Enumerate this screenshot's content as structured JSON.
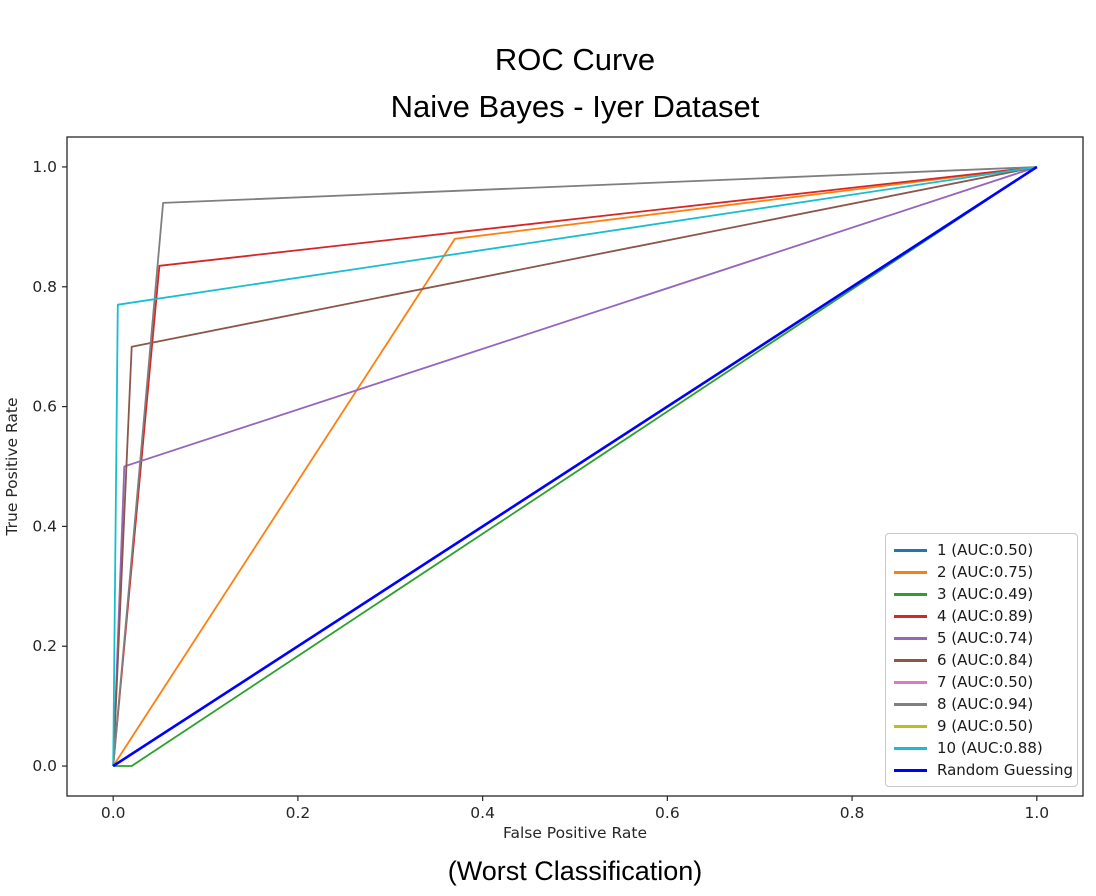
{
  "title": {
    "line1": "ROC Curve",
    "line2": "Naive Bayes - Iyer Dataset"
  },
  "caption": "(Worst Classification)",
  "chart_data": {
    "type": "line",
    "title": "ROC Curve — Naive Bayes - Iyer Dataset",
    "xlabel": "False Positive Rate",
    "ylabel": "True Positive Rate",
    "xlim": [
      -0.05,
      1.05
    ],
    "ylim": [
      -0.05,
      1.05
    ],
    "x_ticks": [
      "0.0",
      "0.2",
      "0.4",
      "0.6",
      "0.8",
      "1.0"
    ],
    "y_ticks": [
      "0.0",
      "0.2",
      "0.4",
      "0.6",
      "0.8",
      "1.0"
    ],
    "grid": false,
    "legend_position": "lower right",
    "axis_color": "#262626",
    "series": [
      {
        "name": "1 (AUC:0.50)",
        "color": "#1f77b4",
        "width": 1.8,
        "points": [
          [
            0,
            0
          ],
          [
            1,
            1
          ]
        ]
      },
      {
        "name": "2 (AUC:0.75)",
        "color": "#ff7f0e",
        "width": 1.8,
        "points": [
          [
            0,
            0
          ],
          [
            0.37,
            0.88
          ],
          [
            1,
            1
          ]
        ]
      },
      {
        "name": "3 (AUC:0.49)",
        "color": "#2ca02c",
        "width": 1.8,
        "points": [
          [
            0,
            0
          ],
          [
            0.02,
            0
          ],
          [
            1,
            1
          ]
        ]
      },
      {
        "name": "4 (AUC:0.89)",
        "color": "#d62728",
        "width": 1.8,
        "points": [
          [
            0,
            0
          ],
          [
            0.05,
            0.835
          ],
          [
            1,
            1
          ]
        ]
      },
      {
        "name": "5 (AUC:0.74)",
        "color": "#9467bd",
        "width": 1.8,
        "points": [
          [
            0,
            0
          ],
          [
            0.012,
            0.5
          ],
          [
            1,
            1
          ]
        ]
      },
      {
        "name": "6 (AUC:0.84)",
        "color": "#8c564b",
        "width": 1.8,
        "points": [
          [
            0,
            0
          ],
          [
            0.02,
            0.7
          ],
          [
            1,
            1
          ]
        ]
      },
      {
        "name": "7 (AUC:0.50)",
        "color": "#e377c2",
        "width": 1.8,
        "points": [
          [
            0,
            0
          ],
          [
            1,
            1
          ]
        ]
      },
      {
        "name": "8 (AUC:0.94)",
        "color": "#7f7f7f",
        "width": 1.8,
        "points": [
          [
            0,
            0
          ],
          [
            0.054,
            0.94
          ],
          [
            1,
            1
          ]
        ]
      },
      {
        "name": "9 (AUC:0.50)",
        "color": "#bcbd22",
        "width": 1.8,
        "points": [
          [
            0,
            0
          ],
          [
            1,
            1
          ]
        ]
      },
      {
        "name": "10 (AUC:0.88)",
        "color": "#17becf",
        "width": 1.8,
        "points": [
          [
            0,
            0
          ],
          [
            0.005,
            0.77
          ],
          [
            1,
            1
          ]
        ]
      },
      {
        "name": "Random Guessing",
        "color": "#0000ff",
        "width": 2.6,
        "points": [
          [
            0,
            0
          ],
          [
            1,
            1
          ]
        ]
      }
    ]
  }
}
